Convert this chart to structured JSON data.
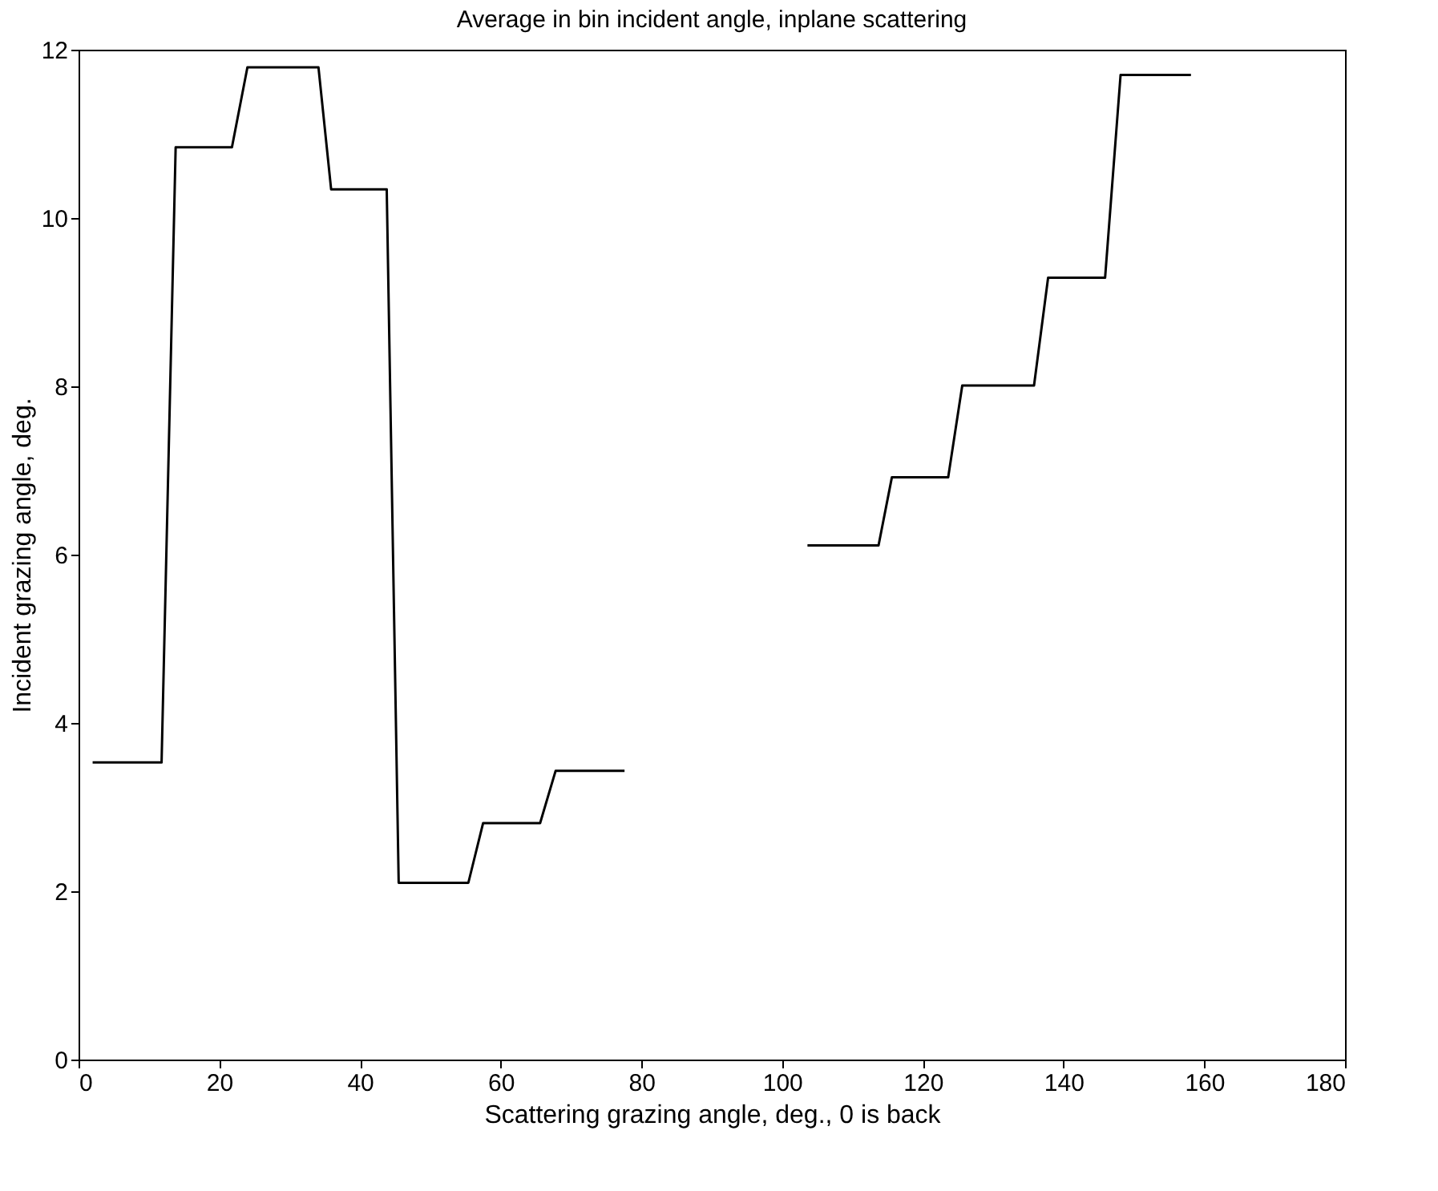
{
  "chart_data": {
    "type": "line",
    "title": "Average in bin incident angle, inplane scattering",
    "xlabel": "Scattering grazing angle, deg., 0 is back",
    "ylabel": "Incident grazing angle, deg.",
    "x": [
      2.0,
      11.8,
      13.8,
      21.8,
      24.0,
      34.1,
      35.9,
      43.8,
      45.5,
      55.4,
      57.5,
      65.6,
      67.8,
      77.6,
      90,
      103.6,
      113.7,
      115.6,
      123.6,
      125.6,
      135.8,
      137.8,
      145.9,
      148.1,
      158.1
    ],
    "series": [
      {
        "color": "#000000",
        "values": [
          3.53,
          3.53,
          10.84,
          10.84,
          11.79,
          11.79,
          10.34,
          10.34,
          2.1,
          2.1,
          2.81,
          2.81,
          3.43,
          3.43,
          null,
          6.11,
          6.11,
          6.92,
          6.92,
          8.01,
          8.01,
          9.29,
          9.29,
          11.7,
          11.7
        ]
      }
    ],
    "xlim": [
      0,
      180
    ],
    "ylim": [
      0,
      12
    ],
    "xticks": [
      0,
      20,
      40,
      60,
      80,
      100,
      120,
      140,
      160,
      180
    ],
    "yticks": [
      0,
      2,
      4,
      6,
      8,
      10,
      12
    ],
    "grid": false,
    "legend": false,
    "marker": "none",
    "line_style": "solid"
  }
}
